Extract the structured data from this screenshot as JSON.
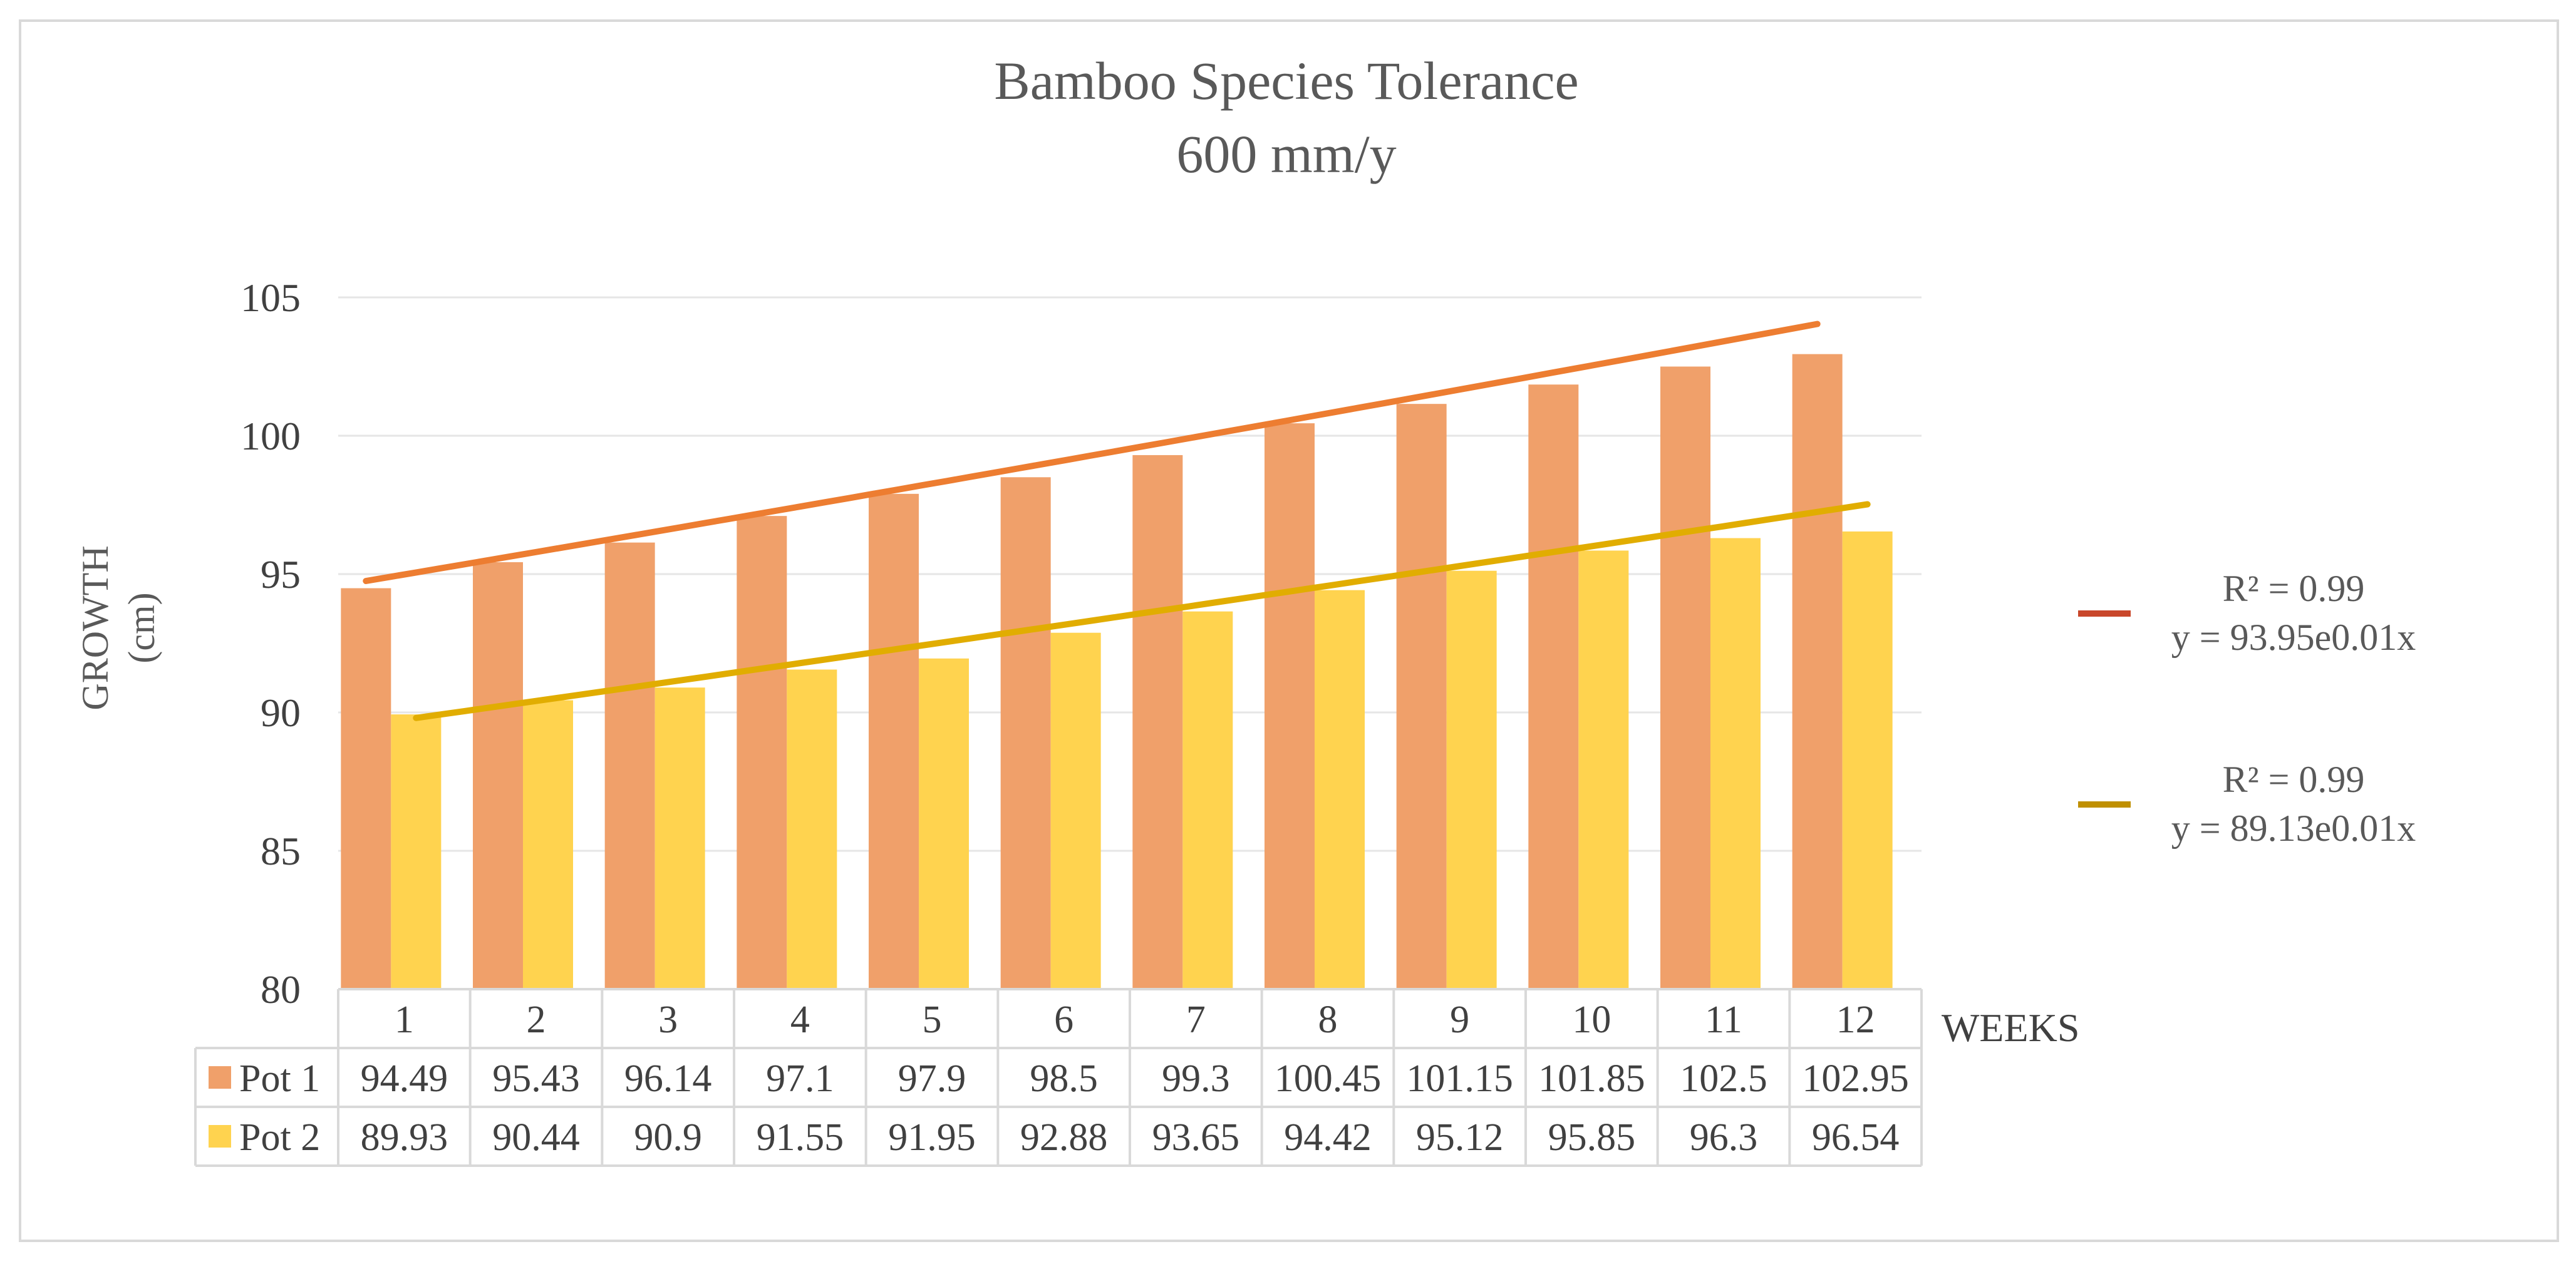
{
  "chart_data": {
    "type": "bar",
    "title": "Bamboo Species Tolerance",
    "subtitle": "600 mm/y",
    "xlabel": "WEEKS",
    "ylabel": "GROWTH",
    "ylabel_unit": "(cm)",
    "ylim": [
      80,
      105
    ],
    "yticks": [
      80,
      85,
      90,
      95,
      100,
      105
    ],
    "categories": [
      "1",
      "2",
      "3",
      "4",
      "5",
      "6",
      "7",
      "8",
      "9",
      "10",
      "11",
      "12"
    ],
    "series": [
      {
        "name": "Pot 1",
        "color": "#F0A06A",
        "values": [
          94.49,
          95.43,
          96.14,
          97.1,
          97.9,
          98.5,
          99.3,
          100.45,
          101.15,
          101.85,
          102.5,
          102.95
        ],
        "labels": [
          "94.49",
          "95.43",
          "96.14",
          "97.1",
          "97.9",
          "98.5",
          "99.3",
          "100.45",
          "101.15",
          "101.85",
          "102.5",
          "102.95"
        ]
      },
      {
        "name": "Pot 2",
        "color": "#FFD34F",
        "values": [
          89.93,
          90.44,
          90.9,
          91.55,
          91.95,
          92.88,
          93.65,
          94.42,
          95.12,
          95.85,
          96.3,
          96.54
        ],
        "labels": [
          "89.93",
          "90.44",
          "90.9",
          "91.55",
          "91.95",
          "92.88",
          "93.65",
          "94.42",
          "95.12",
          "95.85",
          "96.3",
          "96.54"
        ]
      }
    ],
    "trendlines": [
      {
        "series": "Pot 1",
        "type": "exponential",
        "a": 93.95,
        "b": 0.0085,
        "x_range": [
          1,
          12
        ],
        "line_color": "#ED7D31",
        "legend_color": "#C9472B",
        "r2_label": "R² = 0.99",
        "equation_label": "y = 93.95e0.01x"
      },
      {
        "series": "Pot 2",
        "type": "exponential",
        "a": 89.13,
        "b": 0.0075,
        "x_range": [
          1,
          12
        ],
        "line_color": "#E1AD01",
        "legend_color": "#C09000",
        "r2_label": "R² = 0.99",
        "equation_label": "y = 89.13e0.01x"
      }
    ],
    "grid": true,
    "legend_position": "right",
    "data_table": true
  }
}
